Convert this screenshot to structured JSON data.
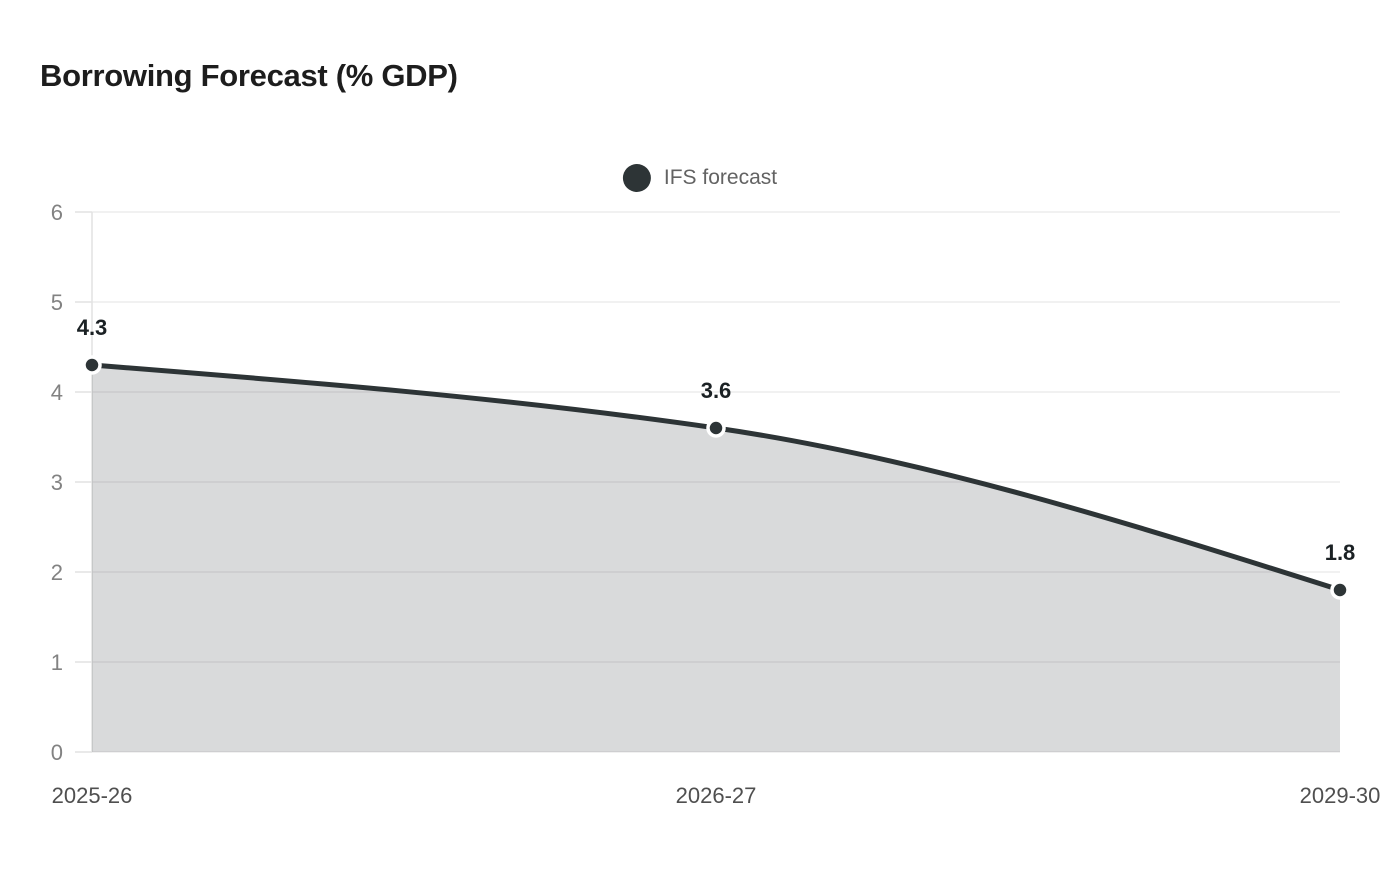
{
  "header": {
    "title": "Borrowing Forecast (% GDP)"
  },
  "legend": {
    "items": [
      {
        "label": "IFS forecast",
        "marker": "circle",
        "color": "#2d3436"
      }
    ]
  },
  "chart_data": {
    "type": "area",
    "title": "Borrowing Forecast (% GDP)",
    "categories": [
      "2025-26",
      "2026-27",
      "2029-30"
    ],
    "series": [
      {
        "name": "IFS forecast",
        "values": [
          4.3,
          3.6,
          1.8
        ]
      }
    ],
    "point_labels": [
      "4.3",
      "3.6",
      "1.8"
    ],
    "xlabel": "",
    "ylabel": "",
    "ylim": [
      0,
      6
    ],
    "yticks": [
      0,
      1,
      2,
      3,
      4,
      5,
      6
    ],
    "grid": "horizontal",
    "legend_position": "top-center",
    "curve": "monotone",
    "colors": {
      "line": "#2d3436",
      "fill": "rgba(45,52,54,0.18)",
      "grid": "#efefef",
      "axis": "#e2e2e2",
      "ytick_label": "#828282",
      "xtick_label": "#4f4f4f",
      "value_label": "#1b2124",
      "marker_stroke": "#ffffff"
    }
  }
}
